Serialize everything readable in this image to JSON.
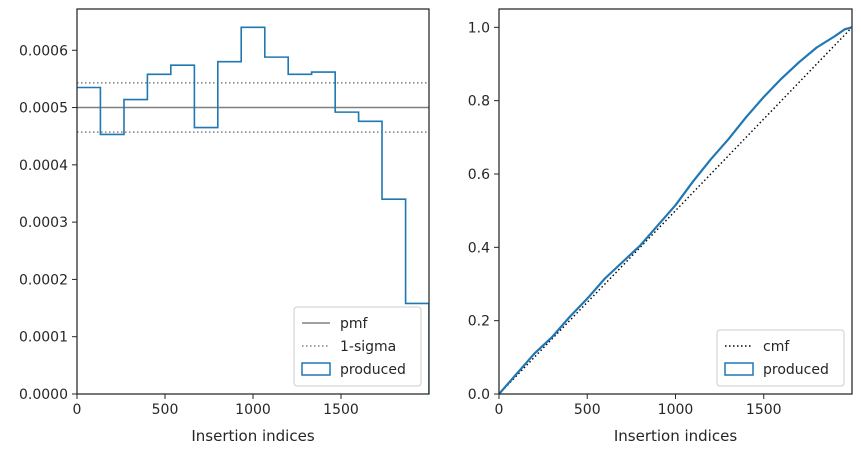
{
  "colors": {
    "produced": "#1f77b4",
    "pmf": "#808080",
    "sigma": "#808080",
    "cmf": "#000000",
    "axes": "#262626"
  },
  "chart_data": [
    {
      "type": "step-histogram",
      "xlabel": "Insertion indices",
      "ylabel": "",
      "xlim": [
        0,
        2000
      ],
      "ylim": [
        0,
        0.000672
      ],
      "xticks": [
        0,
        500,
        1000,
        1500
      ],
      "yticks": [
        0,
        0.0001,
        0.0002,
        0.0003,
        0.0004,
        0.0005,
        0.0006
      ],
      "ytick_labels": [
        "0.0000",
        "0.0001",
        "0.0002",
        "0.0003",
        "0.0004",
        "0.0005",
        "0.0006"
      ],
      "bin_edges": [
        0,
        133,
        267,
        400,
        533,
        667,
        800,
        933,
        1067,
        1200,
        1333,
        1467,
        1600,
        1733,
        1867,
        2000
      ],
      "series": [
        {
          "name": "produced",
          "style": "step",
          "values": [
            0.000535,
            0.000453,
            0.000514,
            0.000558,
            0.000574,
            0.000465,
            0.00058,
            0.00064,
            0.000588,
            0.000558,
            0.000562,
            0.000492,
            0.000476,
            0.00034,
            0.000158
          ]
        }
      ],
      "hlines": [
        {
          "name": "pmf",
          "y": 0.0005,
          "style": "solid"
        },
        {
          "name": "1-sigma",
          "y": 0.000543,
          "style": "dotted"
        },
        {
          "name": "1-sigma",
          "y": 0.000457,
          "style": "dotted"
        }
      ],
      "legend": {
        "placement": "lower-right",
        "entries": [
          {
            "label": "pmf",
            "marker": "solid-line"
          },
          {
            "label": "1-sigma",
            "marker": "dotted-line"
          },
          {
            "label": "produced",
            "marker": "box"
          }
        ]
      }
    },
    {
      "type": "line",
      "xlabel": "Insertion indices",
      "ylabel": "",
      "xlim": [
        0,
        2000
      ],
      "ylim": [
        0,
        1.05
      ],
      "xticks": [
        0,
        500,
        1000,
        1500
      ],
      "yticks": [
        0,
        0.2,
        0.4,
        0.6,
        0.8,
        1.0
      ],
      "ytick_labels": [
        "0.0",
        "0.2",
        "0.4",
        "0.6",
        "0.8",
        "1.0"
      ],
      "series": [
        {
          "name": "cmf",
          "style": "dotted",
          "x": [
            0,
            2000
          ],
          "y": [
            0,
            1.0
          ]
        },
        {
          "name": "produced",
          "style": "solid",
          "x": [
            0,
            100,
            200,
            300,
            400,
            500,
            600,
            700,
            800,
            900,
            1000,
            1100,
            1200,
            1300,
            1400,
            1500,
            1600,
            1700,
            1800,
            1900,
            1960,
            2000
          ],
          "y": [
            0,
            0.055,
            0.11,
            0.155,
            0.21,
            0.26,
            0.315,
            0.36,
            0.405,
            0.46,
            0.515,
            0.58,
            0.64,
            0.695,
            0.755,
            0.81,
            0.86,
            0.905,
            0.945,
            0.975,
            0.995,
            1.0
          ]
        }
      ],
      "legend": {
        "placement": "lower-right",
        "entries": [
          {
            "label": "cmf",
            "marker": "dotted-line"
          },
          {
            "label": "produced",
            "marker": "box"
          }
        ]
      }
    }
  ]
}
